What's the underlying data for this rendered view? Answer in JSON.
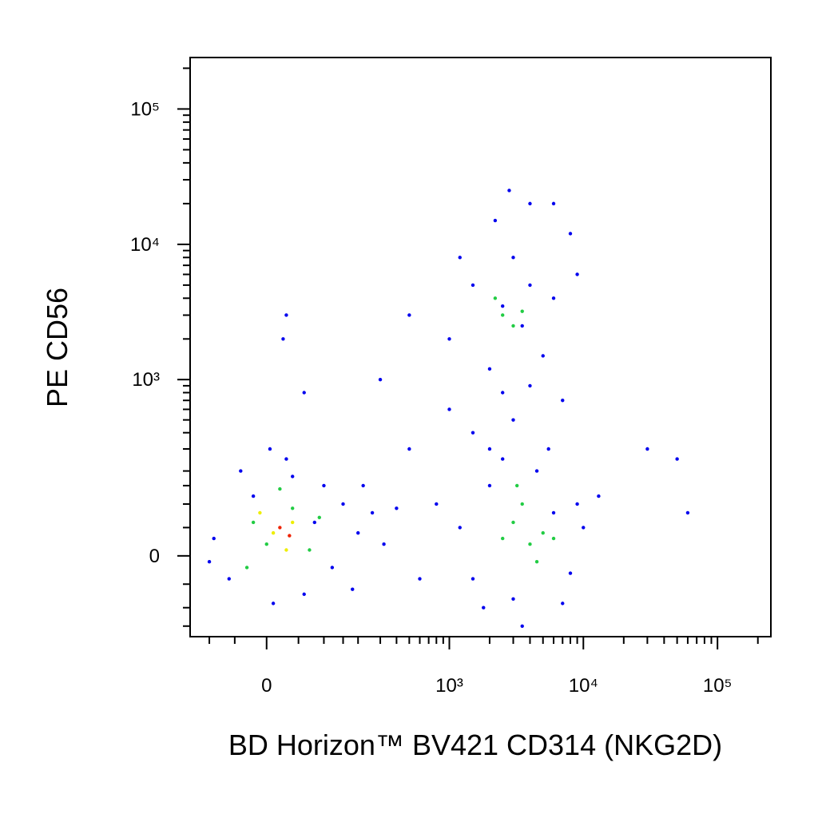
{
  "chart_data": {
    "type": "scatter",
    "x_label": "BD Horizon™ BV421 CD314 (NKG2D)",
    "y_label": "PE CD56",
    "xscale": "biexponential",
    "yscale": "biexponential",
    "xlim": [
      -150,
      250000
    ],
    "ylim": [
      -185,
      240000
    ],
    "xticks": [
      0,
      {
        "value": 1000,
        "label": "10³"
      },
      {
        "value": 10000,
        "label": "10⁴"
      },
      {
        "value": 100000,
        "label": "10⁵"
      }
    ],
    "yticks": [
      0,
      {
        "value": 1000,
        "label": "10³"
      },
      {
        "value": 10000,
        "label": "10⁴"
      },
      {
        "value": 100000,
        "label": "10⁵"
      }
    ],
    "xminorticks": [
      -100,
      -50,
      50,
      100,
      150,
      200,
      300,
      400,
      500,
      600,
      700,
      800,
      900,
      2000,
      3000,
      4000,
      5000,
      6000,
      7000,
      8000,
      9000,
      20000,
      30000,
      40000,
      50000,
      60000,
      70000,
      80000,
      90000,
      200000
    ],
    "yminorticks": [
      -150,
      -100,
      -50,
      50,
      100,
      150,
      200,
      300,
      400,
      500,
      600,
      700,
      800,
      900,
      2000,
      3000,
      4000,
      5000,
      6000,
      7000,
      8000,
      9000,
      20000,
      30000,
      40000,
      50000,
      60000,
      70000,
      80000,
      90000,
      200000
    ],
    "series": [
      {
        "color": "#0000ee",
        "x": [
          -60,
          -20,
          10,
          40,
          80,
          120,
          150,
          -90,
          60,
          200,
          260,
          -40,
          30,
          100,
          180,
          -100,
          5,
          220,
          320,
          400,
          500,
          30,
          60,
          25,
          1200,
          1500,
          2000,
          3000,
          4500,
          6000,
          8000,
          9000,
          7000,
          2500,
          1800,
          5500,
          10000,
          13000,
          30000,
          50000,
          60000,
          3500,
          800,
          600,
          1000,
          1500,
          2000,
          2500,
          3000,
          3500,
          4000,
          5000,
          6000,
          1200,
          2200,
          4000,
          6000,
          8000,
          1000,
          1500,
          2500,
          3000,
          4000,
          2000,
          7000,
          2800,
          500,
          300,
          9000
        ],
        "values": [
          -40,
          120,
          -90,
          180,
          60,
          -20,
          100,
          30,
          -70,
          40,
          80,
          200,
          250,
          150,
          -60,
          -10,
          300,
          150,
          20,
          90,
          300,
          3000,
          800,
          2000,
          50,
          -40,
          150,
          -80,
          200,
          80,
          -30,
          100,
          -90,
          250,
          -100,
          300,
          50,
          120,
          300,
          250,
          80,
          -150,
          100,
          -40,
          2000,
          5000,
          1200,
          3500,
          8000,
          2500,
          5000,
          1500,
          4000,
          8000,
          15000,
          20000,
          20000,
          12000,
          600,
          400,
          800,
          500,
          900,
          300,
          700,
          25000,
          3000,
          1000,
          6000
        ]
      },
      {
        "color": "#22cc44",
        "x": [
          0,
          40,
          -20,
          70,
          20,
          -30,
          90,
          3000,
          4000,
          3500,
          5000,
          2500,
          4500,
          6000,
          3200,
          2500,
          3000,
          2200,
          3500
        ],
        "values": [
          20,
          90,
          60,
          10,
          140,
          -20,
          70,
          60,
          20,
          100,
          40,
          30,
          -10,
          30,
          150,
          3000,
          2500,
          4000,
          3200
        ]
      },
      {
        "color": "#eeee00",
        "x": [
          10,
          40,
          -10,
          30
        ],
        "values": [
          40,
          60,
          80,
          10
        ]
      },
      {
        "color": "#ee2200",
        "x": [
          20,
          35
        ],
        "values": [
          50,
          35
        ]
      }
    ]
  }
}
